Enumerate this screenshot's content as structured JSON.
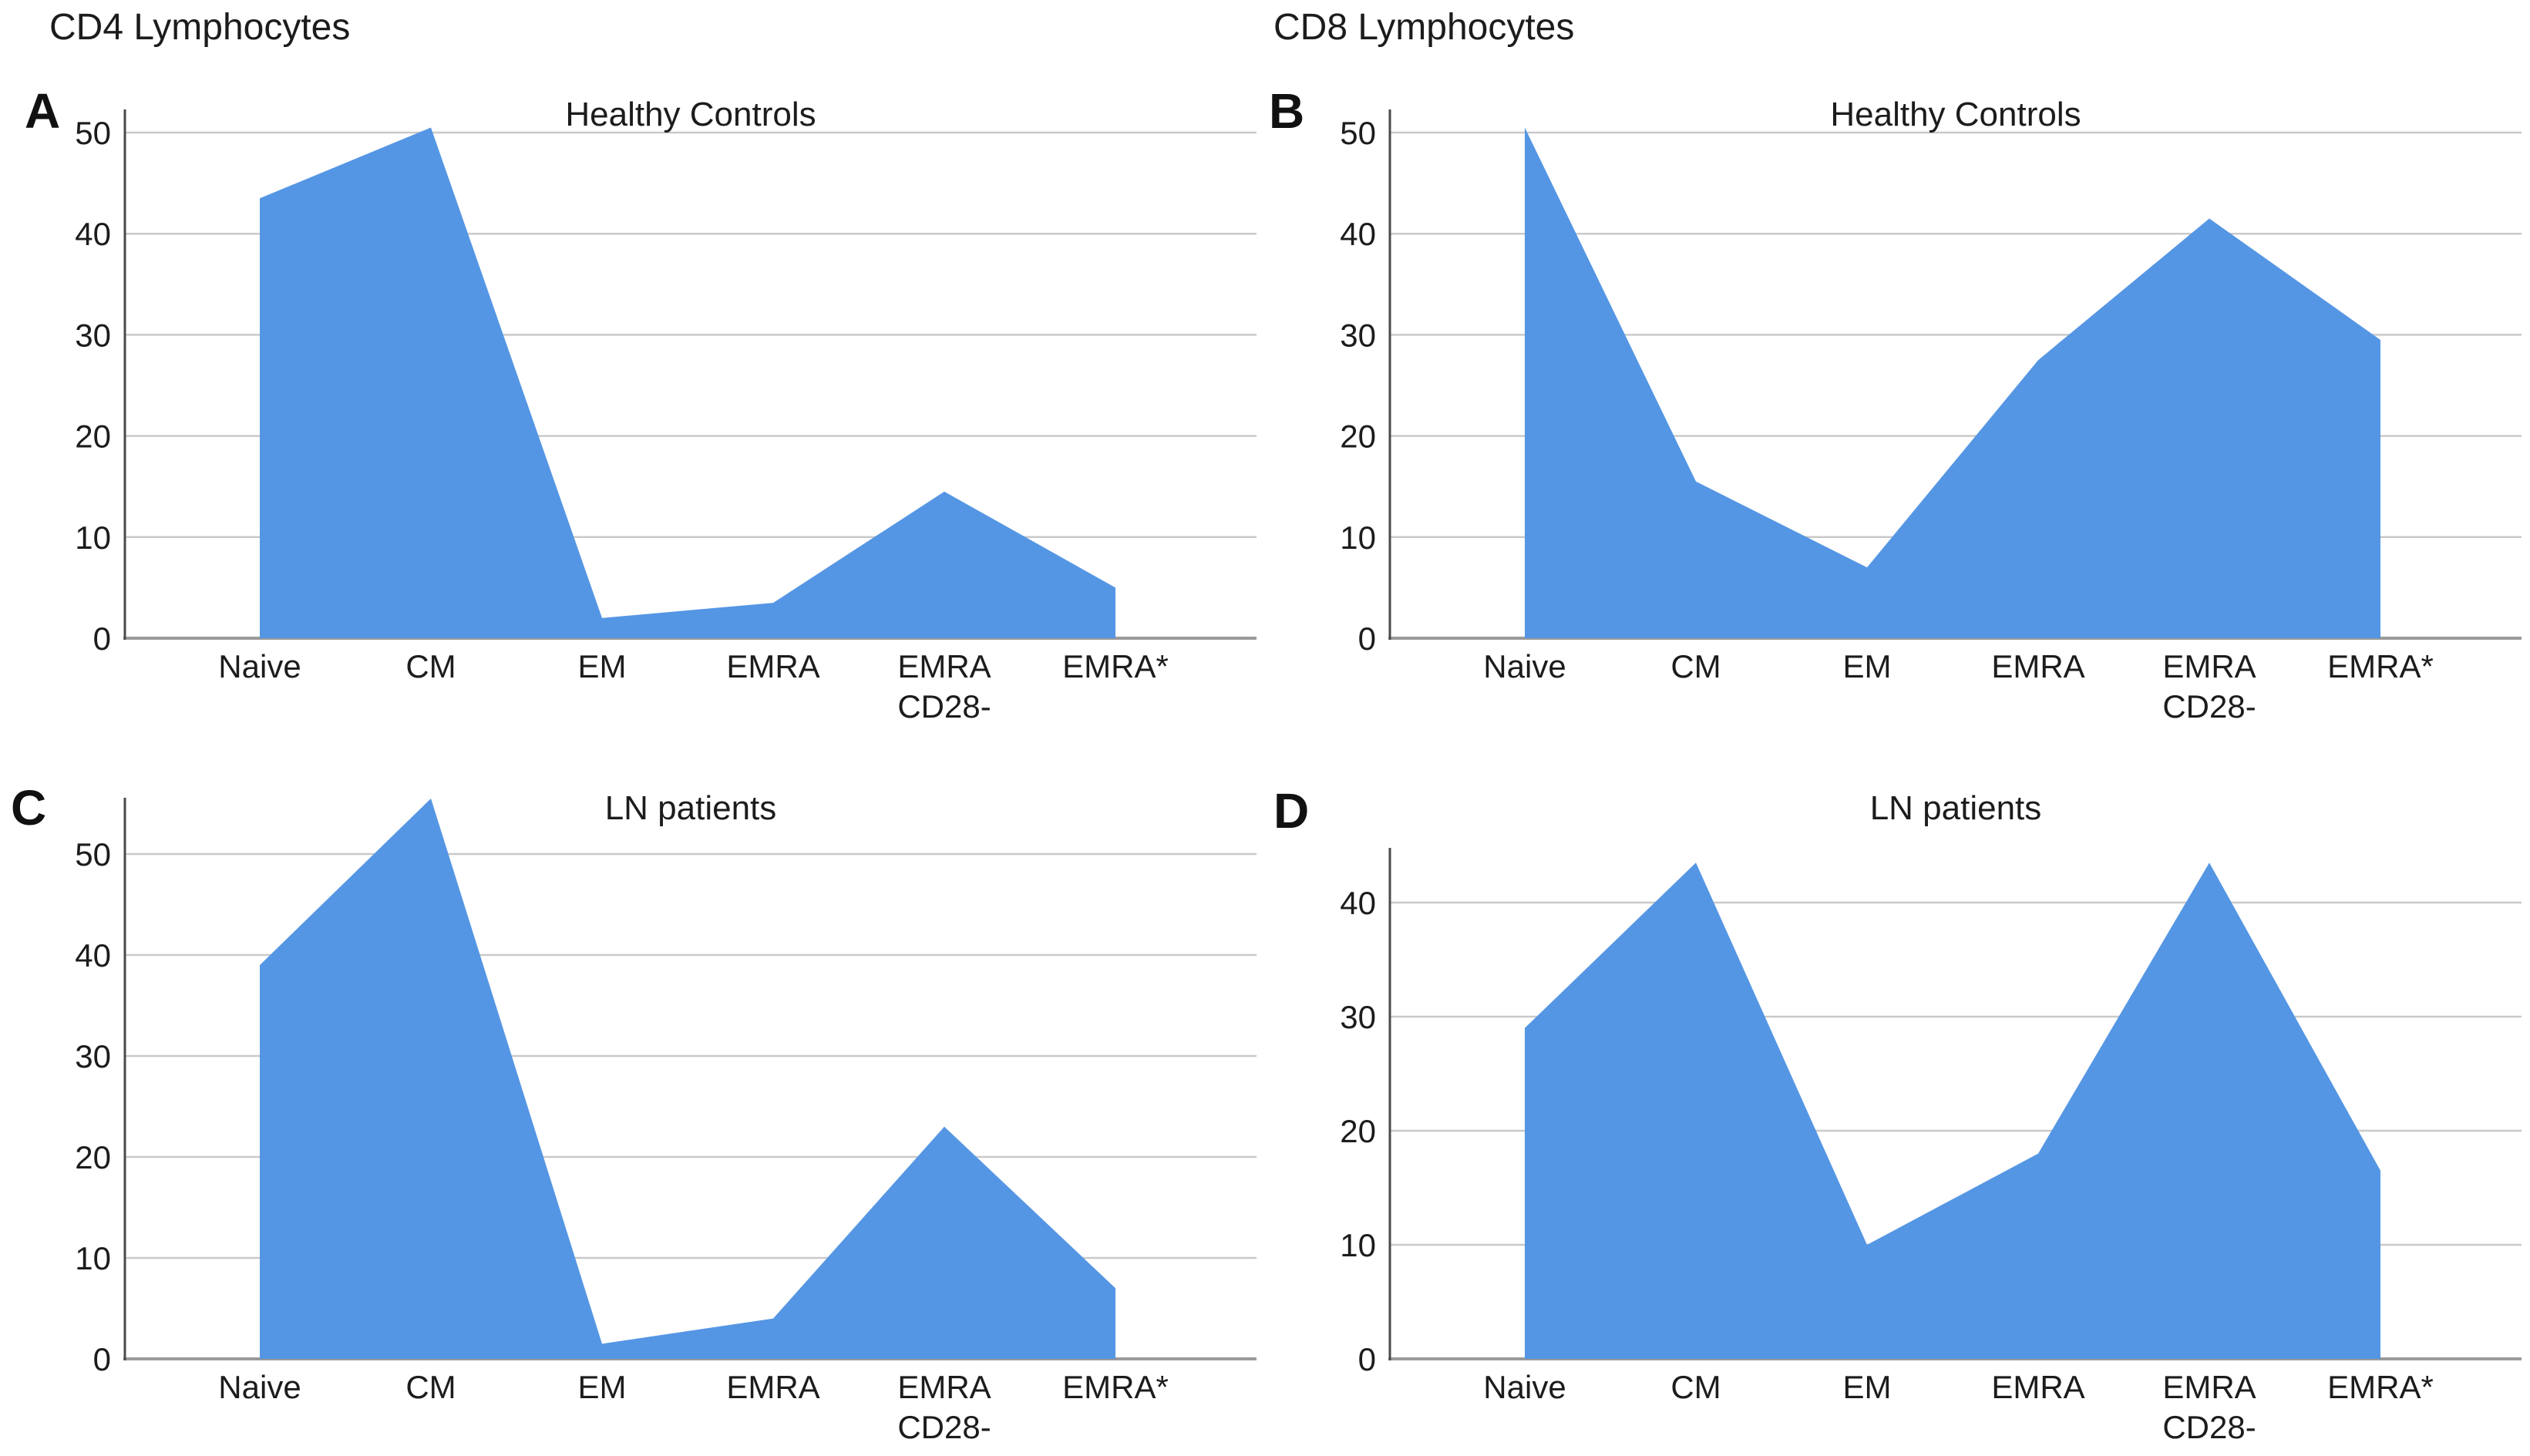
{
  "figure": {
    "background": "#ffffff",
    "columns": [
      {
        "heading": "CD4 Lymphocytes"
      },
      {
        "heading": "CD8 Lymphocytes"
      }
    ]
  },
  "colors": {
    "area_fill": "#5596E4",
    "gridline": "#C9C9C9",
    "baseline": "#9A9A9A",
    "y_axis": "#4A4A4A",
    "text": "#1C1C1C"
  },
  "chart_data": [
    {
      "type": "area",
      "panel_label": "A",
      "group": "CD4 Lymphocytes",
      "title": "Healthy Controls",
      "categories": [
        "Naive",
        "CM",
        "EM",
        "EMRA",
        "EMRA\nCD28-",
        "EMRA*"
      ],
      "values": [
        43.5,
        50.5,
        2,
        3.5,
        14.5,
        5
      ],
      "xlabel": "",
      "ylabel": "",
      "yticks": [
        0,
        10,
        20,
        30,
        40,
        50
      ],
      "ylim": [
        0,
        52.5
      ],
      "grid": true,
      "legend": "none",
      "fill_color": "#5596E4"
    },
    {
      "type": "area",
      "panel_label": "B",
      "group": "CD8 Lymphocytes",
      "title": "Healthy Controls",
      "categories": [
        "Naive",
        "CM",
        "EM",
        "EMRA",
        "EMRA\nCD28-",
        "EMRA*"
      ],
      "values": [
        50.5,
        15.5,
        7,
        27.5,
        41.5,
        29.5
      ],
      "xlabel": "",
      "ylabel": "",
      "yticks": [
        0,
        10,
        20,
        30,
        40,
        50
      ],
      "ylim": [
        0,
        52.5
      ],
      "grid": true,
      "legend": "none",
      "fill_color": "#5596E4"
    },
    {
      "type": "area",
      "panel_label": "C",
      "group": "CD4 Lymphocytes",
      "title": "LN patients",
      "categories": [
        "Naive",
        "CM",
        "EM",
        "EMRA",
        "EMRA\nCD28-",
        "EMRA*"
      ],
      "values": [
        39,
        55.5,
        1.5,
        4,
        23,
        7
      ],
      "xlabel": "",
      "ylabel": "",
      "yticks": [
        0,
        10,
        20,
        30,
        40,
        50
      ],
      "ylim": [
        0,
        55.8
      ],
      "grid": true,
      "legend": "none",
      "fill_color": "#5596E4"
    },
    {
      "type": "area",
      "panel_label": "D",
      "group": "CD8 Lymphocytes",
      "title": "LN patients",
      "categories": [
        "Naive",
        "CM",
        "EM",
        "EMRA",
        "EMRA\nCD28-",
        "EMRA*"
      ],
      "values": [
        29,
        43.5,
        10,
        18,
        43.5,
        16.5
      ],
      "xlabel": "",
      "ylabel": "",
      "yticks": [
        0,
        10,
        20,
        30,
        40
      ],
      "ylim": [
        0,
        45.8
      ],
      "grid": true,
      "legend": "none",
      "fill_color": "#5596E4"
    }
  ]
}
